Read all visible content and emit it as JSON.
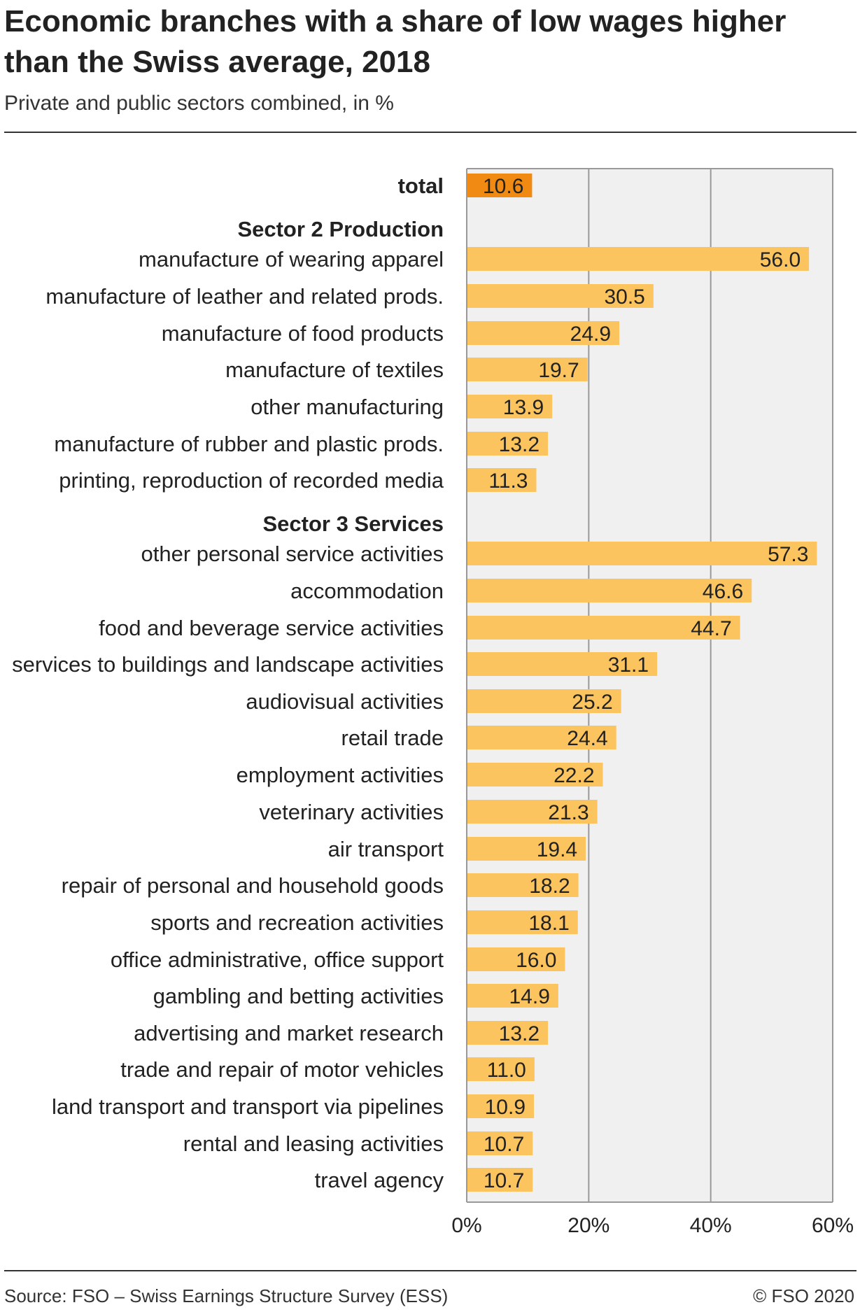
{
  "header": {
    "title": "Economic branches with a share of low wages higher than the Swiss average, 2018",
    "subtitle": "Private and public sectors combined, in %"
  },
  "footer": {
    "source": "Source: FSO – Swiss Earnings Structure Survey (ESS)",
    "copyright": "© FSO 2020"
  },
  "colors": {
    "total_bar": "#f08a12",
    "bar": "#fcc45f",
    "plot_background": "#f0f0f0",
    "gridline": "#999999"
  },
  "chart_data": {
    "type": "bar",
    "orientation": "horizontal",
    "unit": "%",
    "xlim": [
      0,
      60
    ],
    "x_ticks": [
      0,
      20,
      40,
      60
    ],
    "x_tick_labels": [
      "0%",
      "20%",
      "40%",
      "60%"
    ],
    "grid": true,
    "rows": [
      {
        "kind": "total",
        "label": "total",
        "value": 10.6
      },
      {
        "kind": "group",
        "label": "Sector 2 Production"
      },
      {
        "kind": "bar",
        "label": "manufacture of wearing apparel",
        "value": 56.0
      },
      {
        "kind": "bar",
        "label": "manufacture of leather and related prods.",
        "value": 30.5
      },
      {
        "kind": "bar",
        "label": "manufacture of food products",
        "value": 24.9
      },
      {
        "kind": "bar",
        "label": "manufacture of textiles",
        "value": 19.7
      },
      {
        "kind": "bar",
        "label": "other manufacturing",
        "value": 13.9
      },
      {
        "kind": "bar",
        "label": "manufacture of rubber and plastic prods.",
        "value": 13.2
      },
      {
        "kind": "bar",
        "label": "printing, reproduction of recorded media",
        "value": 11.3
      },
      {
        "kind": "group",
        "label": "Sector 3 Services"
      },
      {
        "kind": "bar",
        "label": "other personal service activities",
        "value": 57.3
      },
      {
        "kind": "bar",
        "label": "accommodation",
        "value": 46.6
      },
      {
        "kind": "bar",
        "label": "food and beverage service activities",
        "value": 44.7
      },
      {
        "kind": "bar",
        "label": "services to buildings and landscape activities",
        "value": 31.1
      },
      {
        "kind": "bar",
        "label": "audiovisual activities",
        "value": 25.2
      },
      {
        "kind": "bar",
        "label": "retail trade",
        "value": 24.4
      },
      {
        "kind": "bar",
        "label": "employment activities",
        "value": 22.2
      },
      {
        "kind": "bar",
        "label": "veterinary activities",
        "value": 21.3
      },
      {
        "kind": "bar",
        "label": "air transport",
        "value": 19.4
      },
      {
        "kind": "bar",
        "label": "repair of personal and household goods",
        "value": 18.2
      },
      {
        "kind": "bar",
        "label": "sports and recreation activities",
        "value": 18.1
      },
      {
        "kind": "bar",
        "label": "office administrative, office support",
        "value": 16.0
      },
      {
        "kind": "bar",
        "label": "gambling and betting activities",
        "value": 14.9
      },
      {
        "kind": "bar",
        "label": "advertising and market research",
        "value": 13.2
      },
      {
        "kind": "bar",
        "label": "trade and repair of motor vehicles",
        "value": 11.0
      },
      {
        "kind": "bar",
        "label": "land transport and transport via pipelines",
        "value": 10.9
      },
      {
        "kind": "bar",
        "label": "rental and leasing activities",
        "value": 10.7
      },
      {
        "kind": "bar",
        "label": "travel agency",
        "value": 10.7
      }
    ]
  }
}
